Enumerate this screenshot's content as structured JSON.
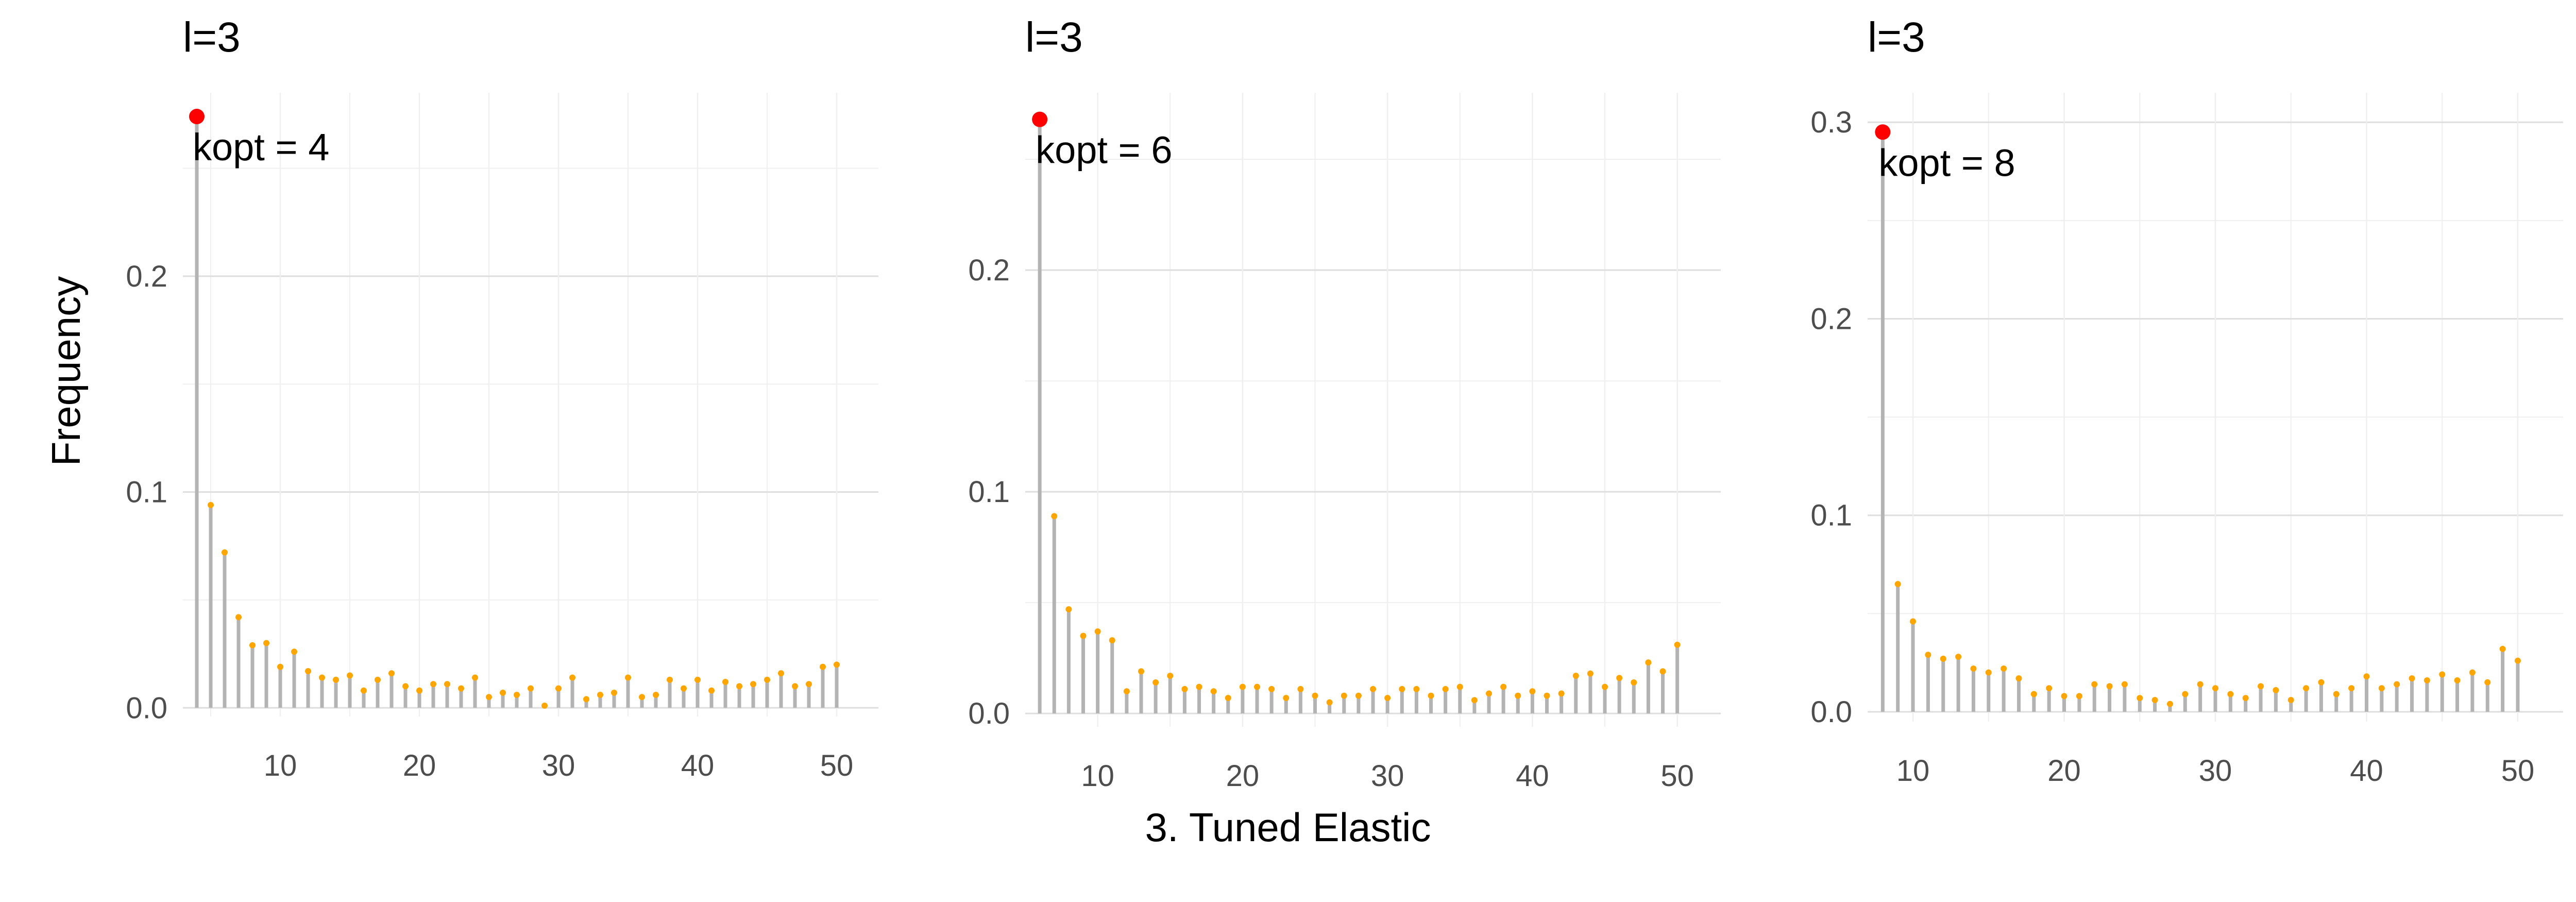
{
  "figure": {
    "ylabel": "Frequency",
    "xlabel": "3. Tuned Elastic"
  },
  "colors": {
    "stem": "#b3b3b3",
    "point": "#ffa500",
    "highlight": "#ff0000",
    "grid_major": "#dedede",
    "grid_minor": "#efefef",
    "axis_text": "#4d4d4d"
  },
  "chart_data": [
    {
      "type": "lollipop",
      "title": "l=3",
      "annotation": "kopt = 4",
      "kopt": 4,
      "xlim": [
        3,
        53
      ],
      "ylim": [
        -0.004,
        0.285
      ],
      "xticks": [
        10,
        20,
        30,
        40,
        50
      ],
      "yticks": [
        0.0,
        0.1,
        0.2
      ],
      "ytick_labels": [
        "0.0",
        "0.1",
        "0.2"
      ],
      "x": [
        4,
        5,
        6,
        7,
        8,
        9,
        10,
        11,
        12,
        13,
        14,
        15,
        16,
        17,
        18,
        19,
        20,
        21,
        22,
        23,
        24,
        25,
        26,
        27,
        28,
        29,
        30,
        31,
        32,
        33,
        34,
        35,
        36,
        37,
        38,
        39,
        40,
        41,
        42,
        43,
        44,
        45,
        46,
        47,
        48,
        49,
        50
      ],
      "values": [
        0.274,
        0.094,
        0.072,
        0.042,
        0.029,
        0.03,
        0.019,
        0.026,
        0.017,
        0.014,
        0.013,
        0.015,
        0.008,
        0.013,
        0.016,
        0.01,
        0.008,
        0.011,
        0.011,
        0.009,
        0.014,
        0.005,
        0.007,
        0.006,
        0.009,
        0.001,
        0.009,
        0.014,
        0.004,
        0.006,
        0.007,
        0.014,
        0.005,
        0.006,
        0.013,
        0.009,
        0.013,
        0.008,
        0.012,
        0.01,
        0.011,
        0.013,
        0.016,
        0.01,
        0.011,
        0.019,
        0.02
      ]
    },
    {
      "type": "lollipop",
      "title": "l=3",
      "annotation": "kopt = 6",
      "kopt": 6,
      "xlim": [
        5,
        53
      ],
      "ylim": [
        -0.006,
        0.28
      ],
      "xticks": [
        10,
        20,
        30,
        40,
        50
      ],
      "yticks": [
        0.0,
        0.1,
        0.2
      ],
      "ytick_labels": [
        "0.0",
        "0.1",
        "0.2"
      ],
      "x": [
        6,
        7,
        8,
        9,
        10,
        11,
        12,
        13,
        14,
        15,
        16,
        17,
        18,
        19,
        20,
        21,
        22,
        23,
        24,
        25,
        26,
        27,
        28,
        29,
        30,
        31,
        32,
        33,
        34,
        35,
        36,
        37,
        38,
        39,
        40,
        41,
        42,
        43,
        44,
        45,
        46,
        47,
        48,
        49,
        50
      ],
      "values": [
        0.268,
        0.089,
        0.047,
        0.035,
        0.037,
        0.033,
        0.01,
        0.019,
        0.014,
        0.017,
        0.011,
        0.012,
        0.01,
        0.007,
        0.012,
        0.012,
        0.011,
        0.007,
        0.011,
        0.008,
        0.005,
        0.008,
        0.008,
        0.011,
        0.007,
        0.011,
        0.011,
        0.008,
        0.011,
        0.012,
        0.006,
        0.009,
        0.012,
        0.008,
        0.01,
        0.008,
        0.009,
        0.017,
        0.018,
        0.012,
        0.016,
        0.014,
        0.023,
        0.019,
        0.031
      ]
    },
    {
      "type": "lollipop",
      "title": "l=3",
      "annotation": "kopt = 8",
      "kopt": 8,
      "xlim": [
        7,
        53
      ],
      "ylim": [
        -0.005,
        0.315
      ],
      "xticks": [
        10,
        20,
        30,
        40,
        50
      ],
      "yticks": [
        0.0,
        0.1,
        0.2,
        0.3
      ],
      "ytick_labels": [
        "0.0",
        "0.1",
        "0.2",
        "0.3"
      ],
      "x": [
        8,
        9,
        10,
        11,
        12,
        13,
        14,
        15,
        16,
        17,
        18,
        19,
        20,
        21,
        22,
        23,
        24,
        25,
        26,
        27,
        28,
        29,
        30,
        31,
        32,
        33,
        34,
        35,
        36,
        37,
        38,
        39,
        40,
        41,
        42,
        43,
        44,
        45,
        46,
        47,
        48,
        49,
        50
      ],
      "values": [
        0.295,
        0.065,
        0.046,
        0.029,
        0.027,
        0.028,
        0.022,
        0.02,
        0.022,
        0.017,
        0.009,
        0.012,
        0.008,
        0.008,
        0.014,
        0.013,
        0.014,
        0.007,
        0.006,
        0.004,
        0.009,
        0.014,
        0.012,
        0.009,
        0.007,
        0.013,
        0.011,
        0.006,
        0.012,
        0.015,
        0.009,
        0.012,
        0.018,
        0.012,
        0.014,
        0.017,
        0.016,
        0.019,
        0.016,
        0.02,
        0.015,
        0.032,
        0.026
      ]
    }
  ]
}
